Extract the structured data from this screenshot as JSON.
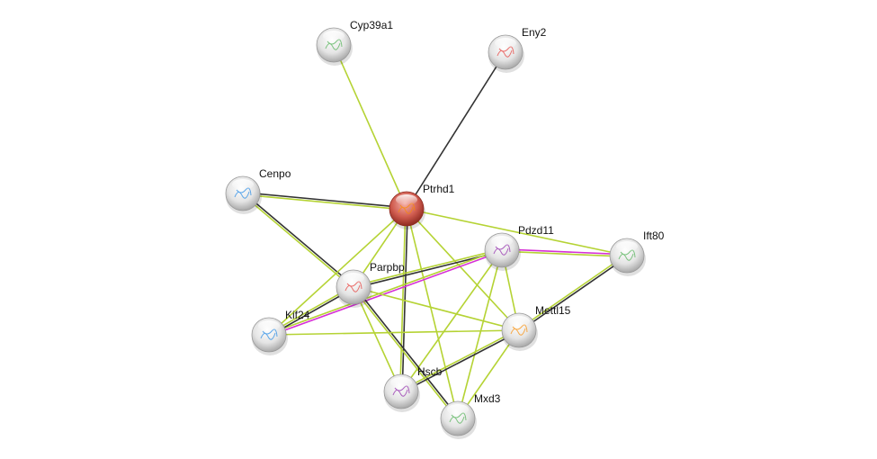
{
  "network": {
    "query_node": "Ptrhd1",
    "nodes": [
      {
        "id": "Cyp39a1",
        "label": "Cyp39a1"
      },
      {
        "id": "Eny2",
        "label": "Eny2"
      },
      {
        "id": "Cenpo",
        "label": "Cenpo"
      },
      {
        "id": "Ptrhd1",
        "label": "Ptrhd1"
      },
      {
        "id": "Pdzd11",
        "label": "Pdzd11"
      },
      {
        "id": "Ift80",
        "label": "Ift80"
      },
      {
        "id": "Parpbp",
        "label": "Parpbp"
      },
      {
        "id": "Kif24",
        "label": "Kif24"
      },
      {
        "id": "Mettl15",
        "label": "Mettl15"
      },
      {
        "id": "Hscb",
        "label": "Hscb"
      },
      {
        "id": "Mxd3",
        "label": "Mxd3"
      }
    ],
    "edge_colors": {
      "textmining": "#b5d334",
      "coexpression": "#333333",
      "homology": "#d62fd6"
    },
    "node_colors": {
      "query": "#c0392b",
      "default": "#e8e8e8"
    },
    "edges": [
      {
        "a": "Cyp39a1",
        "b": "Ptrhd1",
        "types": [
          "textmining"
        ]
      },
      {
        "a": "Eny2",
        "b": "Ptrhd1",
        "types": [
          "coexpression"
        ]
      },
      {
        "a": "Cenpo",
        "b": "Ptrhd1",
        "types": [
          "coexpression",
          "textmining"
        ]
      },
      {
        "a": "Cenpo",
        "b": "Parpbp",
        "types": [
          "coexpression",
          "textmining"
        ]
      },
      {
        "a": "Ptrhd1",
        "b": "Ift80",
        "types": [
          "textmining"
        ]
      },
      {
        "a": "Ptrhd1",
        "b": "Mettl15",
        "types": [
          "textmining"
        ]
      },
      {
        "a": "Ptrhd1",
        "b": "Kif24",
        "types": [
          "textmining"
        ]
      },
      {
        "a": "Ptrhd1",
        "b": "Parpbp",
        "types": [
          "textmining"
        ]
      },
      {
        "a": "Ptrhd1",
        "b": "Hscb",
        "types": [
          "coexpression",
          "textmining"
        ]
      },
      {
        "a": "Ptrhd1",
        "b": "Mxd3",
        "types": [
          "textmining"
        ]
      },
      {
        "a": "Pdzd11",
        "b": "Ift80",
        "types": [
          "homology",
          "textmining"
        ]
      },
      {
        "a": "Pdzd11",
        "b": "Parpbp",
        "types": [
          "coexpression",
          "textmining"
        ]
      },
      {
        "a": "Pdzd11",
        "b": "Kif24",
        "types": [
          "homology",
          "textmining"
        ]
      },
      {
        "a": "Pdzd11",
        "b": "Hscb",
        "types": [
          "textmining"
        ]
      },
      {
        "a": "Pdzd11",
        "b": "Mxd3",
        "types": [
          "textmining"
        ]
      },
      {
        "a": "Pdzd11",
        "b": "Mettl15",
        "types": [
          "textmining"
        ]
      },
      {
        "a": "Ift80",
        "b": "Mettl15",
        "types": [
          "coexpression",
          "textmining"
        ]
      },
      {
        "a": "Parpbp",
        "b": "Kif24",
        "types": [
          "coexpression",
          "textmining"
        ]
      },
      {
        "a": "Parpbp",
        "b": "Mettl15",
        "types": [
          "textmining"
        ]
      },
      {
        "a": "Parpbp",
        "b": "Hscb",
        "types": [
          "textmining"
        ]
      },
      {
        "a": "Parpbp",
        "b": "Mxd3",
        "types": [
          "coexpression",
          "textmining"
        ]
      },
      {
        "a": "Kif24",
        "b": "Mettl15",
        "types": [
          "textmining"
        ]
      },
      {
        "a": "Mettl15",
        "b": "Hscb",
        "types": [
          "coexpression",
          "textmining"
        ]
      },
      {
        "a": "Mettl15",
        "b": "Mxd3",
        "types": [
          "textmining"
        ]
      }
    ]
  }
}
